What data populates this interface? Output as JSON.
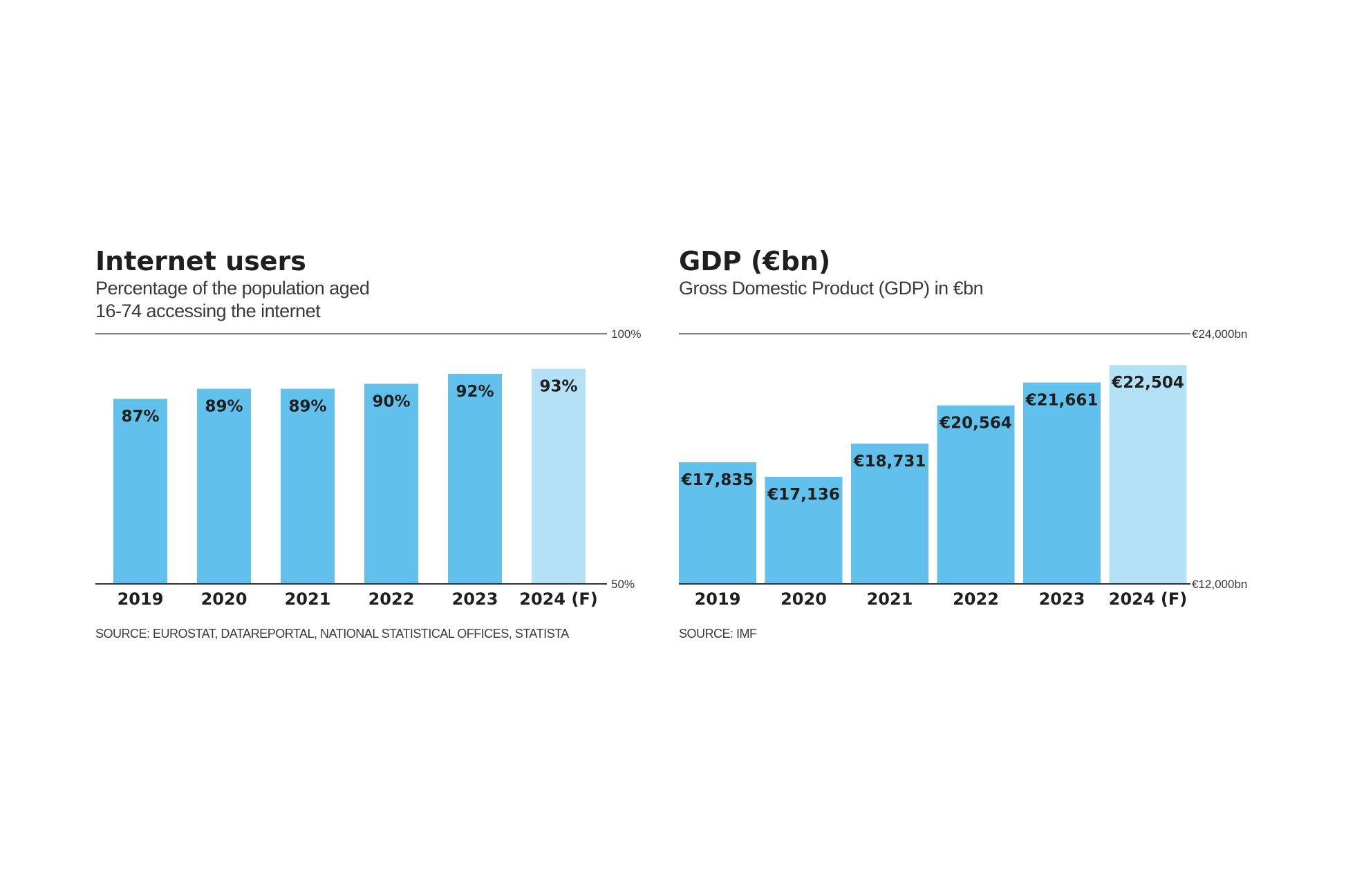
{
  "colors": {
    "bar": "#62c1ec",
    "bar_forecast": "#b5e1f7",
    "text": "#1f1f1f",
    "axis": "#333333"
  },
  "chart_data": [
    {
      "type": "bar",
      "title": "Internet users",
      "subtitle": "Percentage of the population aged\n16-74 accessing the internet",
      "categories": [
        "2019",
        "2020",
        "2021",
        "2022",
        "2023",
        "2024 (F)"
      ],
      "values": [
        87,
        89,
        89,
        90,
        92,
        93
      ],
      "value_labels": [
        "87%",
        "89%",
        "89%",
        "90%",
        "92%",
        "93%"
      ],
      "forecast_index": 5,
      "ylim": [
        50,
        100
      ],
      "ytick_labels": {
        "top": "100%",
        "bottom": "50%"
      },
      "xlabel": "",
      "ylabel": "",
      "grid": false,
      "source": "SOURCE: EUROSTAT, DATAREPORTAL, NATIONAL STATISTICAL OFFICES, STATISTA"
    },
    {
      "type": "bar",
      "title": "GDP (€bn)",
      "subtitle": "Gross Domestic Product (GDP) in €bn",
      "categories": [
        "2019",
        "2020",
        "2021",
        "2022",
        "2023",
        "2024 (F)"
      ],
      "values": [
        17835,
        17136,
        18731,
        20564,
        21661,
        22504
      ],
      "value_labels": [
        "€17,835",
        "€17,136",
        "€18,731",
        "€20,564",
        "€21,661",
        "€22,504"
      ],
      "forecast_index": 5,
      "ylim": [
        12000,
        24000
      ],
      "ytick_labels": {
        "top": "€24,000bn",
        "bottom": "€12,000bn"
      },
      "xlabel": "",
      "ylabel": "",
      "grid": false,
      "source": "SOURCE: IMF"
    }
  ]
}
